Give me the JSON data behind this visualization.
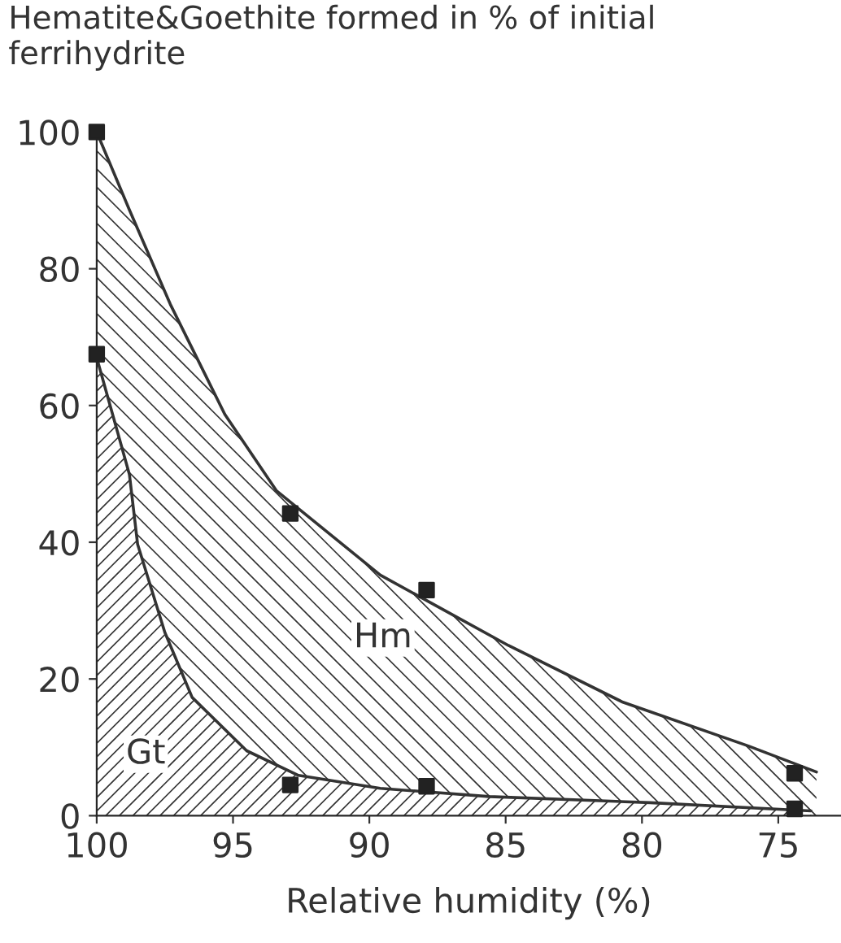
{
  "chart_data": {
    "type": "area",
    "ylabel": "Hematite&Goethite formed in % of initial\nferrihydrite",
    "xlabel": "Relative humidity (%)",
    "xlim": [
      100,
      72.7
    ],
    "xticks": [
      100,
      95,
      90,
      85,
      80,
      75
    ],
    "ylim": [
      0,
      100
    ],
    "yticks": [
      0,
      20,
      40,
      60,
      80,
      100
    ],
    "grid": false,
    "legend": false,
    "series": [
      {
        "color": "#333333",
        "x": [
          100,
          98.8,
          97.3,
          95.3,
          93.4,
          89.6,
          84.9,
          80.7,
          76.1,
          73.6
        ],
        "values": [
          100,
          88.6,
          74.8,
          58.7,
          47.5,
          35.2,
          24.9,
          16.6,
          10.2,
          6.4
        ]
      },
      {
        "color": "#333333",
        "x": [
          100,
          98.8,
          98.5,
          97.5,
          96.5,
          94.5,
          92.6,
          89.6,
          85.6,
          79.7,
          73.8
        ],
        "values": [
          67,
          49.9,
          39.7,
          26.8,
          17.3,
          9.5,
          5.9,
          4.0,
          2.8,
          1.9,
          0.7
        ]
      },
      {
        "type": "scatter",
        "color": "#222222",
        "marker": "square",
        "x": [
          100,
          92.9,
          87.9,
          74.4
        ],
        "values": [
          100,
          44.2,
          33,
          6.2
        ]
      },
      {
        "type": "scatter",
        "color": "#222222",
        "marker": "square",
        "x": [
          100,
          92.9,
          87.9,
          74.4
        ],
        "values": [
          67.5,
          4.5,
          4.3,
          1
        ]
      }
    ],
    "annotations": [
      {
        "text": "Hm",
        "x": 89.5,
        "y": 26
      },
      {
        "text": "Gt",
        "x": 98.2,
        "y": 9
      }
    ]
  }
}
